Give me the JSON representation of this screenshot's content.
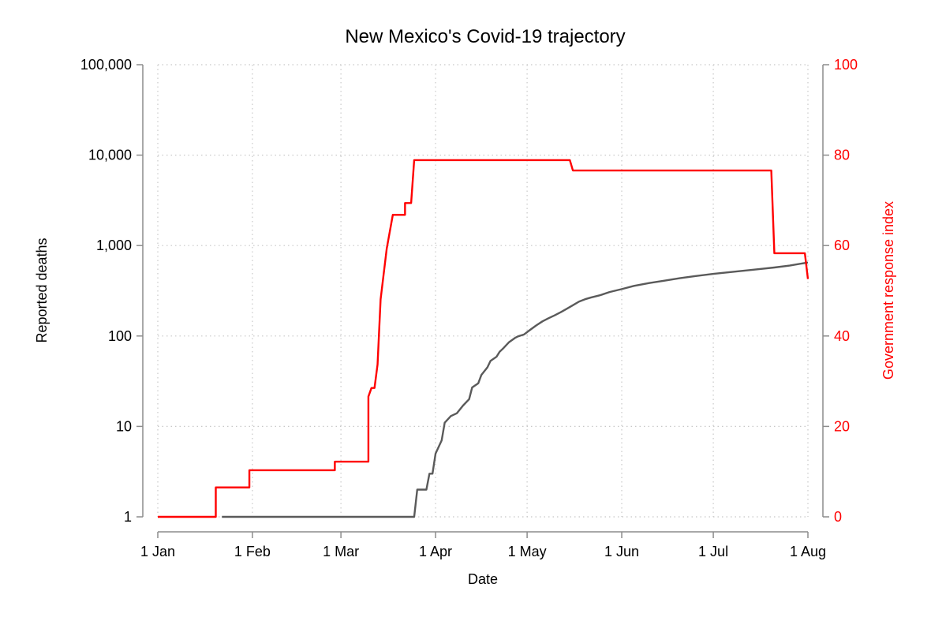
{
  "chart_data": {
    "type": "line",
    "title": "New Mexico's Covid-19 trajectory",
    "xlabel": "Date",
    "ylabel_left": "Reported deaths",
    "ylabel_right": "Government response index",
    "x_ticks": [
      "1 Jan",
      "1 Feb",
      "1 Mar",
      "1 Apr",
      "1 May",
      "1 Jun",
      "1 Jul",
      "1 Aug"
    ],
    "x_range": [
      "2020-01-01",
      "2020-08-01"
    ],
    "y_left": {
      "scale": "log",
      "range": [
        1,
        100000
      ],
      "ticks": [
        1,
        10,
        100,
        1000,
        10000,
        100000
      ],
      "tick_labels": [
        "1",
        "10",
        "100",
        "1,000",
        "10,000",
        "100,000"
      ]
    },
    "y_right": {
      "scale": "linear",
      "range": [
        0,
        100
      ],
      "ticks": [
        0,
        20,
        40,
        60,
        80,
        100
      ],
      "tick_labels": [
        "0",
        "20",
        "40",
        "60",
        "80",
        "100"
      ]
    },
    "grid": true,
    "colors": {
      "deaths": "#5a5a5a",
      "response": "#ff0000",
      "axis": "#8c8c8c",
      "grid": "#c8c8c8"
    },
    "series": [
      {
        "axis": "left",
        "color": "#5a5a5a",
        "points": [
          [
            "2020-01-22",
            1
          ],
          [
            "2020-03-25",
            1
          ],
          [
            "2020-03-26",
            2
          ],
          [
            "2020-03-29",
            2
          ],
          [
            "2020-03-30",
            3
          ],
          [
            "2020-03-31",
            3
          ],
          [
            "2020-04-01",
            5
          ],
          [
            "2020-04-03",
            7
          ],
          [
            "2020-04-04",
            11
          ],
          [
            "2020-04-06",
            13
          ],
          [
            "2020-04-08",
            14
          ],
          [
            "2020-04-10",
            17
          ],
          [
            "2020-04-12",
            20
          ],
          [
            "2020-04-13",
            27
          ],
          [
            "2020-04-15",
            30
          ],
          [
            "2020-04-16",
            37
          ],
          [
            "2020-04-18",
            45
          ],
          [
            "2020-04-19",
            53
          ],
          [
            "2020-04-21",
            59
          ],
          [
            "2020-04-22",
            67
          ],
          [
            "2020-04-23",
            72
          ],
          [
            "2020-04-25",
            85
          ],
          [
            "2020-04-27",
            95
          ],
          [
            "2020-04-28",
            99
          ],
          [
            "2020-04-30",
            104
          ],
          [
            "2020-05-02",
            117
          ],
          [
            "2020-05-04",
            131
          ],
          [
            "2020-05-06",
            145
          ],
          [
            "2020-05-08",
            157
          ],
          [
            "2020-05-10",
            169
          ],
          [
            "2020-05-12",
            183
          ],
          [
            "2020-05-14",
            200
          ],
          [
            "2020-05-16",
            219
          ],
          [
            "2020-05-18",
            240
          ],
          [
            "2020-05-20",
            255
          ],
          [
            "2020-05-22",
            267
          ],
          [
            "2020-05-25",
            283
          ],
          [
            "2020-05-28",
            306
          ],
          [
            "2020-06-01",
            330
          ],
          [
            "2020-06-05",
            358
          ],
          [
            "2020-06-10",
            385
          ],
          [
            "2020-06-15",
            409
          ],
          [
            "2020-06-20",
            436
          ],
          [
            "2020-06-25",
            459
          ],
          [
            "2020-07-01",
            486
          ],
          [
            "2020-07-06",
            507
          ],
          [
            "2020-07-11",
            527
          ],
          [
            "2020-07-16",
            549
          ],
          [
            "2020-07-21",
            572
          ],
          [
            "2020-07-26",
            600
          ],
          [
            "2020-08-01",
            650
          ]
        ]
      },
      {
        "axis": "right",
        "color": "#ff0000",
        "points": [
          [
            "2020-01-01",
            0
          ],
          [
            "2020-01-20",
            0
          ],
          [
            "2020-01-20",
            6.5
          ],
          [
            "2020-01-31",
            6.5
          ],
          [
            "2020-01-31",
            10.3
          ],
          [
            "2020-02-28",
            10.3
          ],
          [
            "2020-02-28",
            12.2
          ],
          [
            "2020-03-10",
            12.2
          ],
          [
            "2020-03-10",
            26.6
          ],
          [
            "2020-03-11",
            28.5
          ],
          [
            "2020-03-12",
            28.5
          ],
          [
            "2020-03-13",
            33.7
          ],
          [
            "2020-03-14",
            48.1
          ],
          [
            "2020-03-16",
            59.3
          ],
          [
            "2020-03-18",
            66.8
          ],
          [
            "2020-03-22",
            66.8
          ],
          [
            "2020-03-22",
            69.4
          ],
          [
            "2020-03-24",
            69.4
          ],
          [
            "2020-03-25",
            78.9
          ],
          [
            "2020-05-15",
            78.9
          ],
          [
            "2020-05-16",
            76.6
          ],
          [
            "2020-07-20",
            76.6
          ],
          [
            "2020-07-21",
            58.3
          ],
          [
            "2020-07-31",
            58.3
          ],
          [
            "2020-08-01",
            52.6
          ]
        ]
      }
    ]
  }
}
